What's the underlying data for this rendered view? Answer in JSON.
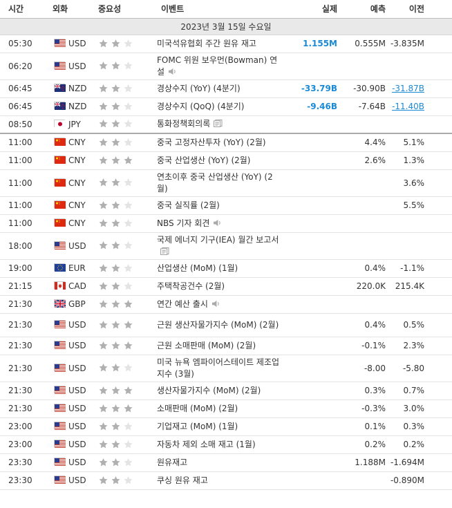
{
  "headers": {
    "time": "시간",
    "currency": "외화",
    "importance": "중요성",
    "event": "이벤트",
    "actual": "실제",
    "forecast": "예측",
    "previous": "이전"
  },
  "date_label": "2023년 3월 15일 수요일",
  "colors": {
    "star_on": "#b0b0b0",
    "star_off": "#e4e4e4",
    "highlight": "#1a8ad6"
  },
  "rows": [
    {
      "time": "05:30",
      "currency": "USD",
      "flag": "us",
      "stars": 2,
      "event": "미국석유협회 주간 원유 재고",
      "icon": null,
      "actual": "1.155M",
      "forecast": "0.555M",
      "previous": "-3.835M",
      "actual_style": "blue",
      "prev_style": ""
    },
    {
      "time": "06:20",
      "currency": "USD",
      "flag": "us",
      "stars": 2,
      "event": "FOMC 위원 보우먼(Bowman) 연설",
      "icon": "speaker-icon",
      "actual": "",
      "forecast": "",
      "previous": "",
      "actual_style": "",
      "prev_style": ""
    },
    {
      "time": "06:45",
      "currency": "NZD",
      "flag": "nz",
      "stars": 2,
      "event": "경상수지 (YoY) (4분기)",
      "icon": null,
      "actual": "-33.79B",
      "forecast": "-30.90B",
      "previous": "-31.87B",
      "actual_style": "blue",
      "prev_style": "ublue"
    },
    {
      "time": "06:45",
      "currency": "NZD",
      "flag": "nz",
      "stars": 2,
      "event": "경상수지 (QoQ) (4분기)",
      "icon": null,
      "actual": "-9.46B",
      "forecast": "-7.64B",
      "previous": "-11.40B",
      "actual_style": "blue",
      "prev_style": "ublue"
    },
    {
      "time": "08:50",
      "currency": "JPY",
      "flag": "jp",
      "stars": 2,
      "event": "통화정책회의록",
      "icon": "document-icon",
      "actual": "",
      "forecast": "",
      "previous": "",
      "actual_style": "",
      "prev_style": ""
    },
    {
      "time": "11:00",
      "currency": "CNY",
      "flag": "cn",
      "stars": 2,
      "event": "중국 고정자산투자 (YoY) (2월)",
      "icon": null,
      "actual": "",
      "forecast": "4.4%",
      "previous": "5.1%",
      "actual_style": "",
      "prev_style": ""
    },
    {
      "time": "11:00",
      "currency": "CNY",
      "flag": "cn",
      "stars": 3,
      "event": "중국 산업생산 (YoY) (2월)",
      "icon": null,
      "actual": "",
      "forecast": "2.6%",
      "previous": "1.3%",
      "actual_style": "",
      "prev_style": ""
    },
    {
      "time": "11:00",
      "currency": "CNY",
      "flag": "cn",
      "stars": 2,
      "event": "연초이후 중국 산업생산 (YoY) (2월)",
      "icon": null,
      "actual": "",
      "forecast": "",
      "previous": "3.6%",
      "actual_style": "",
      "prev_style": ""
    },
    {
      "time": "11:00",
      "currency": "CNY",
      "flag": "cn",
      "stars": 2,
      "event": "중국 실직률 (2월)",
      "icon": null,
      "actual": "",
      "forecast": "",
      "previous": "5.5%",
      "actual_style": "",
      "prev_style": ""
    },
    {
      "time": "11:00",
      "currency": "CNY",
      "flag": "cn",
      "stars": 2,
      "event": "NBS 기자 회견",
      "icon": "speaker-icon",
      "actual": "",
      "forecast": "",
      "previous": "",
      "actual_style": "",
      "prev_style": ""
    },
    {
      "time": "18:00",
      "currency": "USD",
      "flag": "us",
      "stars": 2,
      "event": "국제 에너지 기구(IEA) 월간 보고서",
      "icon": "document-icon",
      "actual": "",
      "forecast": "",
      "previous": "",
      "actual_style": "",
      "prev_style": ""
    },
    {
      "time": "19:00",
      "currency": "EUR",
      "flag": "eu",
      "stars": 2,
      "event": "산업생산 (MoM) (1월)",
      "icon": null,
      "actual": "",
      "forecast": "0.4%",
      "previous": "-1.1%",
      "actual_style": "",
      "prev_style": ""
    },
    {
      "time": "21:15",
      "currency": "CAD",
      "flag": "ca",
      "stars": 2,
      "event": "주택착공건수 (2월)",
      "icon": null,
      "actual": "",
      "forecast": "220.0K",
      "previous": "215.4K",
      "actual_style": "",
      "prev_style": ""
    },
    {
      "time": "21:30",
      "currency": "GBP",
      "flag": "gb",
      "stars": 3,
      "event": "연간 예산 출시",
      "icon": "speaker-icon",
      "actual": "",
      "forecast": "",
      "previous": "",
      "actual_style": "",
      "prev_style": ""
    },
    {
      "time": "21:30",
      "currency": "USD",
      "flag": "us",
      "stars": 3,
      "event": "근원 생산자물가지수 (MoM) (2월)",
      "icon": null,
      "actual": "",
      "forecast": "0.4%",
      "previous": "0.5%",
      "actual_style": "",
      "prev_style": ""
    },
    {
      "time": "21:30",
      "currency": "USD",
      "flag": "us",
      "stars": 3,
      "event": "근원 소매판매 (MoM) (2월)",
      "icon": null,
      "actual": "",
      "forecast": "-0.1%",
      "previous": "2.3%",
      "actual_style": "",
      "prev_style": ""
    },
    {
      "time": "21:30",
      "currency": "USD",
      "flag": "us",
      "stars": 2,
      "event": "미국 뉴욕 엠파이어스테이트 제조업지수 (3월)",
      "icon": null,
      "actual": "",
      "forecast": "-8.00",
      "previous": "-5.80",
      "actual_style": "",
      "prev_style": ""
    },
    {
      "time": "21:30",
      "currency": "USD",
      "flag": "us",
      "stars": 3,
      "event": "생산자물가지수 (MoM) (2월)",
      "icon": null,
      "actual": "",
      "forecast": "0.3%",
      "previous": "0.7%",
      "actual_style": "",
      "prev_style": ""
    },
    {
      "time": "21:30",
      "currency": "USD",
      "flag": "us",
      "stars": 3,
      "event": "소매판매 (MoM) (2월)",
      "icon": null,
      "actual": "",
      "forecast": "-0.3%",
      "previous": "3.0%",
      "actual_style": "",
      "prev_style": ""
    },
    {
      "time": "23:00",
      "currency": "USD",
      "flag": "us",
      "stars": 2,
      "event": "기업재고 (MoM) (1월)",
      "icon": null,
      "actual": "",
      "forecast": "0.1%",
      "previous": "0.3%",
      "actual_style": "",
      "prev_style": ""
    },
    {
      "time": "23:00",
      "currency": "USD",
      "flag": "us",
      "stars": 2,
      "event": "자동차 제외 소매 재고 (1월)",
      "icon": null,
      "actual": "",
      "forecast": "0.2%",
      "previous": "0.2%",
      "actual_style": "",
      "prev_style": ""
    },
    {
      "time": "23:30",
      "currency": "USD",
      "flag": "us",
      "stars": 2,
      "event": "원유재고",
      "icon": null,
      "actual": "",
      "forecast": "1.188M",
      "previous": "-1.694M",
      "actual_style": "",
      "prev_style": ""
    },
    {
      "time": "23:30",
      "currency": "USD",
      "flag": "us",
      "stars": 2,
      "event": "쿠싱 원유 재고",
      "icon": null,
      "actual": "",
      "forecast": "",
      "previous": "-0.890M",
      "actual_style": "",
      "prev_style": ""
    }
  ]
}
